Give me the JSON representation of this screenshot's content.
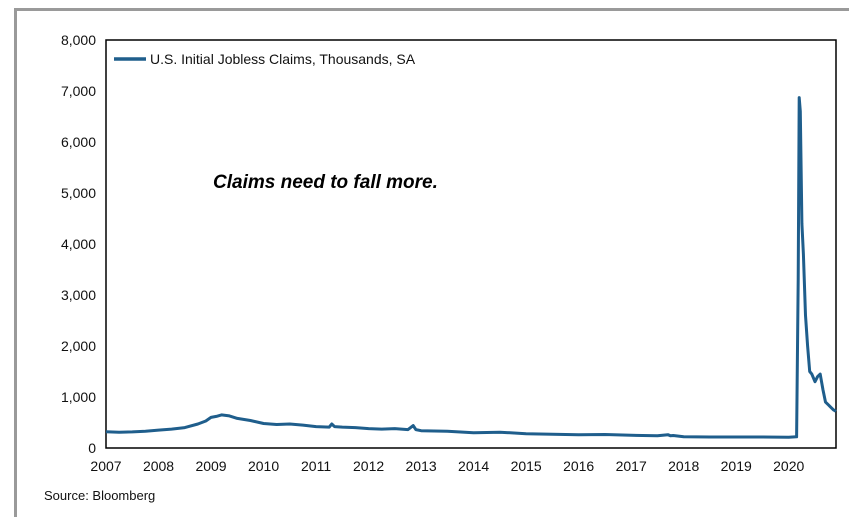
{
  "chart_data": {
    "type": "line",
    "title": "",
    "xlabel": "",
    "ylabel": "",
    "x_ticks": [
      "2007",
      "2008",
      "2009",
      "2010",
      "2011",
      "2012",
      "2013",
      "2014",
      "2015",
      "2016",
      "2017",
      "2018",
      "2019",
      "2020"
    ],
    "y_ticks": [
      "0",
      "1,000",
      "2,000",
      "3,000",
      "4,000",
      "5,000",
      "6,000",
      "7,000",
      "8,000"
    ],
    "xlim": [
      2007.0,
      2020.9
    ],
    "ylim": [
      0,
      8000
    ],
    "legend": {
      "position": "top-left"
    },
    "grid": false,
    "color": "#1f5e8c",
    "series": [
      {
        "name": "U.S. Initial Jobless Claims, Thousands, SA",
        "x": [
          2007.0,
          2007.25,
          2007.5,
          2007.75,
          2008.0,
          2008.25,
          2008.5,
          2008.75,
          2008.9,
          2009.0,
          2009.1,
          2009.2,
          2009.35,
          2009.5,
          2009.75,
          2010.0,
          2010.25,
          2010.5,
          2010.75,
          2011.0,
          2011.25,
          2011.3,
          2011.35,
          2011.5,
          2011.75,
          2012.0,
          2012.25,
          2012.5,
          2012.75,
          2012.85,
          2012.9,
          2013.0,
          2013.5,
          2014.0,
          2014.5,
          2015.0,
          2015.5,
          2016.0,
          2016.5,
          2017.0,
          2017.5,
          2017.7,
          2017.75,
          2017.8,
          2018.0,
          2018.5,
          2019.0,
          2019.5,
          2020.0,
          2020.15,
          2020.18,
          2020.2,
          2020.22,
          2020.25,
          2020.28,
          2020.32,
          2020.36,
          2020.4,
          2020.44,
          2020.5,
          2020.55,
          2020.6,
          2020.65,
          2020.7,
          2020.75,
          2020.8,
          2020.85,
          2020.9
        ],
        "values": [
          320,
          310,
          315,
          330,
          350,
          370,
          400,
          470,
          530,
          600,
          620,
          650,
          630,
          580,
          540,
          480,
          460,
          470,
          450,
          420,
          410,
          470,
          420,
          410,
          400,
          380,
          370,
          380,
          360,
          440,
          360,
          340,
          330,
          300,
          310,
          280,
          270,
          260,
          265,
          250,
          240,
          260,
          240,
          245,
          220,
          215,
          215,
          215,
          210,
          220,
          3300,
          6870,
          6600,
          4400,
          3800,
          2600,
          2000,
          1500,
          1450,
          1300,
          1400,
          1450,
          1150,
          900,
          850,
          800,
          750,
          720
        ]
      }
    ],
    "annotations": [
      "Claims need to fall more."
    ],
    "source": "Source: Bloomberg"
  }
}
